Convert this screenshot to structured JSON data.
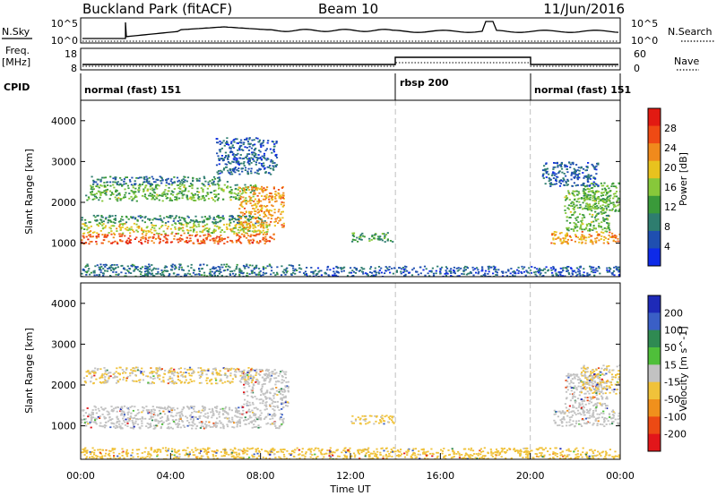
{
  "header": {
    "title": "Buckland Park (fitACF)",
    "beam": "Beam 10",
    "date": "11/Jun/2016"
  },
  "top_panels": {
    "nsky_label": "N.Sky",
    "nsky_ticks": [
      "10^5",
      "10^0"
    ],
    "nsearch_label": "N.Search",
    "nsearch_ticks": [
      "10^5",
      "10^0"
    ],
    "freq_label_1": "Freq.",
    "freq_label_2": "[MHz]",
    "freq_ticks": [
      "18",
      "8"
    ],
    "nave_label": "Nave",
    "nave_ticks": [
      "60",
      "0"
    ],
    "cpid_label": "CPID",
    "cpid_segments": [
      {
        "label": "normal (fast) 151",
        "start_hour": 0,
        "end_hour": 14
      },
      {
        "label": "rbsp 200",
        "start_hour": 14,
        "end_hour": 20
      },
      {
        "label": "normal (fast) 151",
        "start_hour": 20,
        "end_hour": 24
      }
    ]
  },
  "chart_data": [
    {
      "type": "heatmap",
      "quantity": "power",
      "ylabel": "Slant Range [km]",
      "ylim": [
        180,
        4500
      ],
      "yticks": [
        1000,
        2000,
        3000,
        4000
      ],
      "xlim": [
        "00:00",
        "24:00"
      ],
      "colorbar": {
        "label": "Power [dB]",
        "range": [
          0,
          32
        ],
        "ticks": [
          "4",
          "8",
          "12",
          "16",
          "20",
          "24",
          "28"
        ],
        "colors": [
          "#0e2ae8",
          "#1f4fb0",
          "#2e7d6f",
          "#3a9a3a",
          "#87c83a",
          "#e8c21e",
          "#f08a1c",
          "#ef4a14",
          "#e21a12"
        ]
      },
      "regions": [
        {
          "t0": 0.0,
          "t1": 8.6,
          "r0": 1000,
          "r1": 1250,
          "level": 26
        },
        {
          "t0": 0.0,
          "t1": 8.4,
          "r0": 1250,
          "r1": 1500,
          "level": 18
        },
        {
          "t0": 0.0,
          "t1": 8.2,
          "r0": 1500,
          "r1": 1700,
          "level": 10
        },
        {
          "t0": 0.2,
          "t1": 7.8,
          "r0": 2050,
          "r1": 2450,
          "level": 14
        },
        {
          "t0": 0.4,
          "t1": 6.5,
          "r0": 2450,
          "r1": 2650,
          "level": 8
        },
        {
          "t0": 7.0,
          "t1": 9.0,
          "r0": 1400,
          "r1": 2400,
          "level": 22
        },
        {
          "t0": 6.0,
          "t1": 8.7,
          "r0": 2700,
          "r1": 3600,
          "level": 6
        },
        {
          "t0": 0.0,
          "t1": 10.0,
          "r0": 200,
          "r1": 500,
          "level": 8
        },
        {
          "t0": 10.0,
          "t1": 24.0,
          "r0": 200,
          "r1": 450,
          "level": 6
        },
        {
          "t0": 12.0,
          "t1": 13.9,
          "r0": 1050,
          "r1": 1280,
          "level": 12
        },
        {
          "t0": 20.9,
          "t1": 24.0,
          "r0": 1000,
          "r1": 1300,
          "level": 22
        },
        {
          "t0": 21.5,
          "t1": 23.5,
          "r0": 1300,
          "r1": 2300,
          "level": 14
        },
        {
          "t0": 22.3,
          "t1": 24.0,
          "r0": 1800,
          "r1": 2500,
          "level": 14
        },
        {
          "t0": 20.5,
          "t1": 23.0,
          "r0": 2400,
          "r1": 3000,
          "level": 6
        }
      ]
    },
    {
      "type": "heatmap",
      "quantity": "velocity",
      "ylabel": "Slant Range [km]",
      "xlabel": "Time UT",
      "ylim": [
        180,
        4500
      ],
      "yticks": [
        1000,
        2000,
        3000,
        4000
      ],
      "xticks": [
        "00:00",
        "04:00",
        "08:00",
        "12:00",
        "16:00",
        "20:00",
        "00:00"
      ],
      "xlim": [
        "00:00",
        "24:00"
      ],
      "colorbar": {
        "label": "Velocity [m s^-1]",
        "range": [
          -250,
          250
        ],
        "ticks": [
          "200",
          "100",
          "50",
          "15",
          "-15",
          "-50",
          "-100",
          "-200"
        ],
        "colors": [
          "#1e2ab8",
          "#3a5fc6",
          "#2f8a52",
          "#4fbf3a",
          "#c2c2c2",
          "#f0c23a",
          "#f0901c",
          "#ec4a14",
          "#e2161a"
        ]
      },
      "regions": [
        {
          "t0": 0.0,
          "t1": 9.0,
          "r0": 950,
          "r1": 1500,
          "level": 0
        },
        {
          "t0": 0.1,
          "t1": 7.8,
          "r0": 2050,
          "r1": 2450,
          "level": -30
        },
        {
          "t0": 7.2,
          "t1": 9.2,
          "r0": 1500,
          "r1": 2400,
          "level": 0
        },
        {
          "t0": 0.0,
          "t1": 24.0,
          "r0": 200,
          "r1": 480,
          "level": -60
        },
        {
          "t0": 12.0,
          "t1": 13.9,
          "r0": 1050,
          "r1": 1280,
          "level": -40
        },
        {
          "t0": 21.0,
          "t1": 24.0,
          "r0": 1000,
          "r1": 1400,
          "level": 0
        },
        {
          "t0": 21.5,
          "t1": 23.4,
          "r0": 1400,
          "r1": 2300,
          "level": 0
        },
        {
          "t0": 22.2,
          "t1": 24.0,
          "r0": 1800,
          "r1": 2500,
          "level": -30
        }
      ]
    }
  ]
}
